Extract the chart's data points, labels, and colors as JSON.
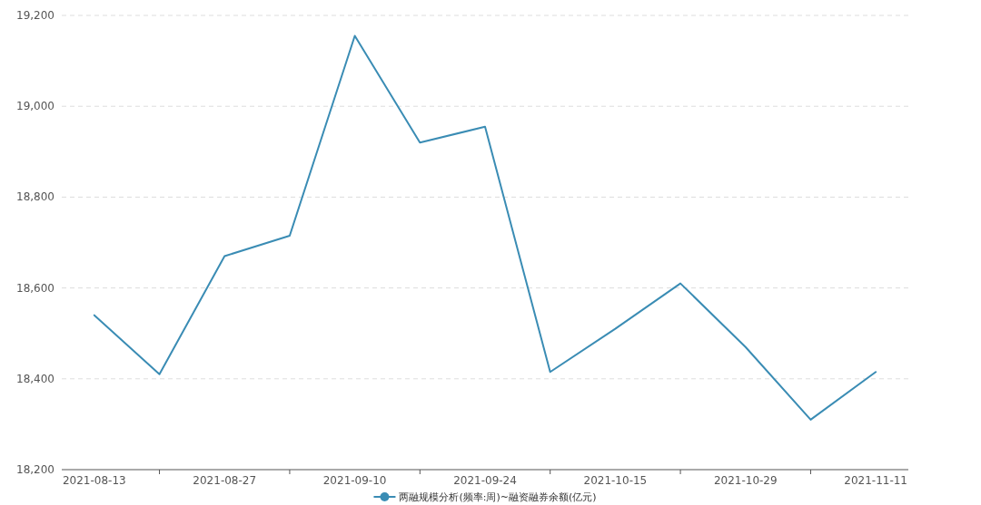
{
  "chart_data": {
    "type": "line",
    "categories": [
      "2021-08-13",
      null,
      "2021-08-27",
      null,
      "2021-09-10",
      null,
      "2021-09-24",
      null,
      "2021-10-15",
      null,
      "2021-10-29",
      null,
      "2021-11-11"
    ],
    "series": [
      {
        "name": "两融规模分析(频率:周)~融资融券余额(亿元)",
        "color": "#3a8cb4",
        "values": [
          18540,
          18410,
          18670,
          18715,
          19155,
          18920,
          18955,
          18415,
          18510,
          18610,
          18470,
          18310,
          18415
        ]
      }
    ],
    "ylim": [
      18200,
      19200
    ],
    "yticks": [
      {
        "value": 18200,
        "label": "18,200"
      },
      {
        "value": 18400,
        "label": "18,400"
      },
      {
        "value": 18600,
        "label": "18,600"
      },
      {
        "value": 18800,
        "label": "18,800"
      },
      {
        "value": 19000,
        "label": "19,000"
      },
      {
        "value": 19200,
        "label": "19,200"
      }
    ],
    "grid": "y",
    "legend": "bottom",
    "marker": "none",
    "line_style": "solid"
  }
}
